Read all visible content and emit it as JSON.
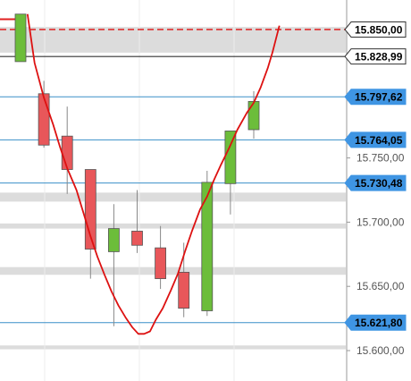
{
  "chart_data": {
    "type": "candlestick",
    "ylim": [
      15590,
      15860
    ],
    "y_ticks": [
      15600,
      15650,
      15700,
      15750
    ],
    "y_tick_labels": [
      "15.600,00",
      "15.650,00",
      "15.700,00",
      "15.750,00"
    ],
    "grid": "vertical",
    "colors": {
      "up": "#6cbd3a",
      "down": "#e8575a",
      "wick": "#888888",
      "curve": "#dd1111",
      "line_blue": "#3a8fc8",
      "line_black": "#333333",
      "zone": "#dcdcdc",
      "dashed": "#e02020",
      "label_blue": "#3f95e3",
      "label_white": "#ffffff"
    },
    "candles": [
      {
        "open": 15825,
        "close": 15862,
        "high": 15862,
        "low": 15825
      },
      {
        "open": 15800,
        "close": 15760,
        "high": 15810,
        "low": 15758
      },
      {
        "open": 15767,
        "close": 15741,
        "high": 15790,
        "low": 15722
      },
      {
        "open": 15741,
        "close": 15679,
        "high": 15741,
        "low": 15656
      },
      {
        "open": 15677,
        "close": 15695,
        "high": 15714,
        "low": 15619
      },
      {
        "open": 15693,
        "close": 15682,
        "high": 15725,
        "low": 15676
      },
      {
        "open": 15680,
        "close": 15656,
        "high": 15697,
        "low": 15648
      },
      {
        "open": 15661,
        "close": 15633,
        "high": 15684,
        "low": 15626
      },
      {
        "open": 15631,
        "close": 15731,
        "high": 15740,
        "low": 15627
      },
      {
        "open": 15730,
        "close": 15771,
        "high": 15771,
        "low": 15706
      },
      {
        "open": 15772,
        "close": 15794,
        "high": 15802,
        "low": 15765
      }
    ],
    "curve": [
      [
        0.3,
        15862
      ],
      [
        0.6,
        15824
      ],
      [
        1.0,
        15797
      ],
      [
        1.4,
        15776
      ],
      [
        1.7,
        15758
      ],
      [
        2.0,
        15742
      ],
      [
        2.4,
        15725
      ],
      [
        2.7,
        15707
      ],
      [
        3.0,
        15689
      ],
      [
        3.3,
        15673
      ],
      [
        3.6,
        15659
      ],
      [
        3.9,
        15646
      ],
      [
        4.2,
        15635
      ],
      [
        4.5,
        15626
      ],
      [
        4.8,
        15618
      ],
      [
        5.05,
        15613
      ],
      [
        5.3,
        15613
      ],
      [
        5.55,
        15615
      ],
      [
        5.8,
        15624
      ],
      [
        6.1,
        15633
      ],
      [
        6.45,
        15647
      ],
      [
        6.75,
        15660
      ],
      [
        7.05,
        15677
      ],
      [
        7.35,
        15693
      ],
      [
        7.7,
        15710
      ],
      [
        8.0,
        15720
      ],
      [
        8.3,
        15733
      ],
      [
        8.6,
        15745
      ],
      [
        8.95,
        15758
      ],
      [
        9.3,
        15772
      ],
      [
        9.7,
        15785
      ],
      [
        10.0,
        15793
      ],
      [
        10.3,
        15805
      ],
      [
        10.6,
        15820
      ],
      [
        10.8,
        15832
      ],
      [
        11.0,
        15846
      ],
      [
        11.1,
        15853
      ]
    ],
    "zones": [
      [
        15832,
        15852
      ],
      [
        15716,
        15723
      ],
      [
        15695,
        15699
      ],
      [
        15659,
        15665
      ],
      [
        15601,
        15604
      ]
    ],
    "levels": [
      {
        "value": 15850.0,
        "label": "15.850,00",
        "line": "dashed",
        "style": "white"
      },
      {
        "value": 15828.99,
        "label": "15.828,99",
        "line": "black",
        "style": "white"
      },
      {
        "value": 15797.62,
        "label": "15.797,62",
        "line": "blue",
        "style": "blue"
      },
      {
        "value": 15764.05,
        "label": "15.764,05",
        "line": "blue",
        "style": "blue"
      },
      {
        "value": 15730.48,
        "label": "15.730,48",
        "line": "blue",
        "style": "blue"
      },
      {
        "value": 15621.8,
        "label": "15.621,80",
        "line": "blue",
        "style": "blue"
      }
    ],
    "marker_top": {
      "value": 15858
    }
  }
}
